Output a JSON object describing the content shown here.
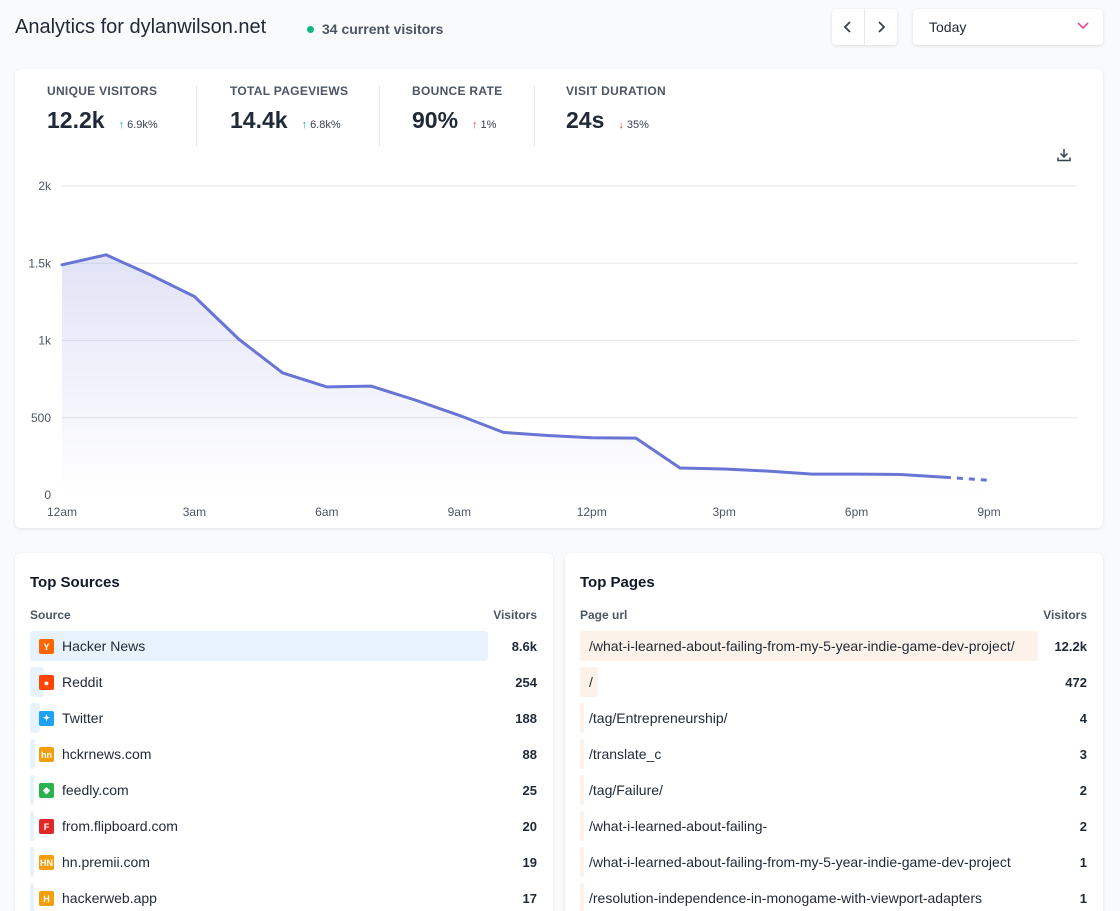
{
  "header": {
    "title": "Analytics for dylanwilson.net",
    "current_visitors": "34 current visitors",
    "period": "Today"
  },
  "stats": [
    {
      "name": "UNIQUE VISITORS",
      "value": "12.2k",
      "change": "6.9k%",
      "direction": "up",
      "color": "#10b981"
    },
    {
      "name": "TOTAL PAGEVIEWS",
      "value": "14.4k",
      "change": "6.8k%",
      "direction": "up",
      "color": "#10b981"
    },
    {
      "name": "BOUNCE RATE",
      "value": "90%",
      "change": "1%",
      "direction": "up",
      "color": "#ef4444"
    },
    {
      "name": "VISIT DURATION",
      "value": "24s",
      "change": "35%",
      "direction": "down",
      "color": "#ef4444"
    }
  ],
  "chart_data": {
    "type": "area",
    "x": [
      "12am",
      "1am",
      "2am",
      "3am",
      "4am",
      "5am",
      "6am",
      "7am",
      "8am",
      "9am",
      "10am",
      "11am",
      "12pm",
      "1pm",
      "2pm",
      "3pm",
      "4pm",
      "5pm",
      "6pm",
      "7pm",
      "8pm",
      "9pm"
    ],
    "series": [
      {
        "values": [
          1490,
          1555,
          1425,
          1285,
          1010,
          790,
          700,
          705,
          615,
          515,
          405,
          385,
          370,
          368,
          175,
          168,
          155,
          135,
          135,
          133,
          115,
          95
        ]
      }
    ],
    "dashed_from_index": 20,
    "xticks": [
      "12am",
      "3am",
      "6am",
      "9am",
      "12pm",
      "3pm",
      "6pm",
      "9pm"
    ],
    "yticks": [
      "0",
      "500",
      "1k",
      "1.5k",
      "2k"
    ],
    "ylim": [
      0,
      2000
    ],
    "grid": true,
    "line_color": "#6875d4"
  },
  "sources": {
    "title": "Top Sources",
    "col_label": "Source",
    "col_value": "Visitors",
    "items": [
      {
        "name": "Hacker News",
        "value": "8.6k",
        "share": 1.0,
        "icon": "hacker-news-icon",
        "color": "#ff6600",
        "glyph": "Y"
      },
      {
        "name": "Reddit",
        "value": "254",
        "share": 0.03,
        "icon": "reddit-icon",
        "color": "#ff4500",
        "glyph": "●"
      },
      {
        "name": "Twitter",
        "value": "188",
        "share": 0.022,
        "icon": "twitter-icon",
        "color": "#1da1f2",
        "glyph": "✦"
      },
      {
        "name": "hckrnews.com",
        "value": "88",
        "share": 0.01,
        "icon": "hckrnews-icon",
        "color": "#f59e0b",
        "glyph": "hn"
      },
      {
        "name": "feedly.com",
        "value": "25",
        "share": 0.003,
        "icon": "feedly-icon",
        "color": "#2bb24c",
        "glyph": "◆"
      },
      {
        "name": "from.flipboard.com",
        "value": "20",
        "share": 0.002,
        "icon": "flipboard-icon",
        "color": "#e12828",
        "glyph": "F"
      },
      {
        "name": "hn.premii.com",
        "value": "19",
        "share": 0.002,
        "icon": "premii-icon",
        "color": "#f59e0b",
        "glyph": "HN"
      },
      {
        "name": "hackerweb.app",
        "value": "17",
        "share": 0.002,
        "icon": "hackerweb-icon",
        "color": "#f59e0b",
        "glyph": "H"
      }
    ]
  },
  "pages": {
    "title": "Top Pages",
    "col_label": "Page url",
    "col_value": "Visitors",
    "items": [
      {
        "name": "/what-i-learned-about-failing-from-my-5-year-indie-game-dev-project/",
        "value": "12.2k",
        "share": 1.0
      },
      {
        "name": "/",
        "value": "472",
        "share": 0.039
      },
      {
        "name": "/tag/Entrepreneurship/",
        "value": "4",
        "share": 0.0
      },
      {
        "name": "/translate_c",
        "value": "3",
        "share": 0.0
      },
      {
        "name": "/tag/Failure/",
        "value": "2",
        "share": 0.0
      },
      {
        "name": "/what-i-learned-about-failing-",
        "value": "2",
        "share": 0.0
      },
      {
        "name": "/what-i-learned-about-failing-from-my-5-year-indie-game-dev-project",
        "value": "1",
        "share": 0.0
      },
      {
        "name": "/resolution-independence-in-monogame-with-viewport-adapters",
        "value": "1",
        "share": 0.0
      }
    ]
  }
}
